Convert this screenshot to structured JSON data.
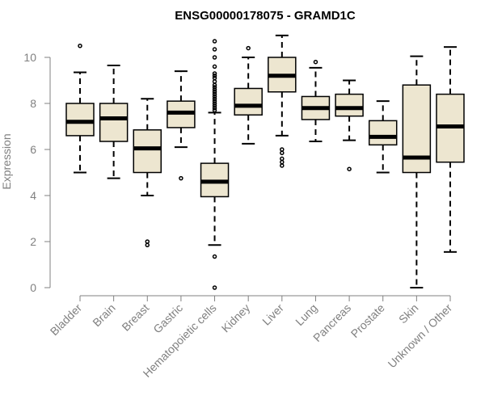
{
  "chart_data": {
    "type": "boxplot",
    "title": "ENSG00000178075 - GRAMD1C",
    "xlabel": "",
    "ylabel": "Expression",
    "ylim": [
      0,
      10
    ],
    "yticks": [
      0,
      2,
      4,
      6,
      8,
      10
    ],
    "colors": {
      "box_fill": "#ede6d0",
      "stroke": "#000000",
      "axis": "#808080"
    },
    "categories": [
      "Bladder",
      "Brain",
      "Breast",
      "Gastric",
      "Hematopoietic cells",
      "Kidney",
      "Liver",
      "Lung",
      "Pancreas",
      "Prostate",
      "Skin",
      "Unknown / Other"
    ],
    "boxes": [
      {
        "name": "Bladder",
        "whisker_low": 5.0,
        "q1": 6.6,
        "median": 7.2,
        "q3": 8.0,
        "whisker_high": 9.35,
        "outliers": [
          10.5
        ]
      },
      {
        "name": "Brain",
        "whisker_low": 4.75,
        "q1": 6.35,
        "median": 7.35,
        "q3": 8.0,
        "whisker_high": 9.65,
        "outliers": []
      },
      {
        "name": "Breast",
        "whisker_low": 4.0,
        "q1": 5.0,
        "median": 6.05,
        "q3": 6.85,
        "whisker_high": 8.2,
        "outliers": [
          2.0,
          1.85
        ]
      },
      {
        "name": "Gastric",
        "whisker_low": 6.1,
        "q1": 6.95,
        "median": 7.6,
        "q3": 8.1,
        "whisker_high": 9.4,
        "outliers": [
          4.75
        ]
      },
      {
        "name": "Hematopoietic cells",
        "whisker_low": 1.85,
        "q1": 3.95,
        "median": 4.6,
        "q3": 5.4,
        "whisker_high": 7.6,
        "outliers": [
          10.7,
          10.35,
          10.0,
          9.6,
          9.3,
          9.2,
          9.1,
          8.95,
          8.8,
          8.7,
          8.6,
          8.5,
          8.4,
          8.3,
          8.2,
          8.1,
          8.0,
          7.9,
          7.8,
          7.7,
          1.35,
          0.0
        ]
      },
      {
        "name": "Kidney",
        "whisker_low": 6.25,
        "q1": 7.5,
        "median": 7.9,
        "q3": 8.65,
        "whisker_high": 10.0,
        "outliers": [
          10.4
        ]
      },
      {
        "name": "Liver",
        "whisker_low": 6.6,
        "q1": 8.5,
        "median": 9.2,
        "q3": 10.0,
        "whisker_high": 10.95,
        "outliers": [
          6.0,
          5.85,
          5.6,
          5.45,
          5.3
        ]
      },
      {
        "name": "Lung",
        "whisker_low": 6.35,
        "q1": 7.3,
        "median": 7.8,
        "q3": 8.3,
        "whisker_high": 9.55,
        "outliers": [
          9.8
        ]
      },
      {
        "name": "Pancreas",
        "whisker_low": 6.4,
        "q1": 7.45,
        "median": 7.8,
        "q3": 8.4,
        "whisker_high": 9.0,
        "outliers": [
          5.15
        ]
      },
      {
        "name": "Prostate",
        "whisker_low": 5.0,
        "q1": 6.2,
        "median": 6.55,
        "q3": 7.25,
        "whisker_high": 8.1,
        "outliers": []
      },
      {
        "name": "Skin",
        "whisker_low": 0.0,
        "q1": 5.0,
        "median": 5.65,
        "q3": 8.8,
        "whisker_high": 10.05,
        "outliers": []
      },
      {
        "name": "Unknown / Other",
        "whisker_low": 1.55,
        "q1": 5.45,
        "median": 7.0,
        "q3": 8.4,
        "whisker_high": 10.45,
        "outliers": []
      }
    ]
  }
}
